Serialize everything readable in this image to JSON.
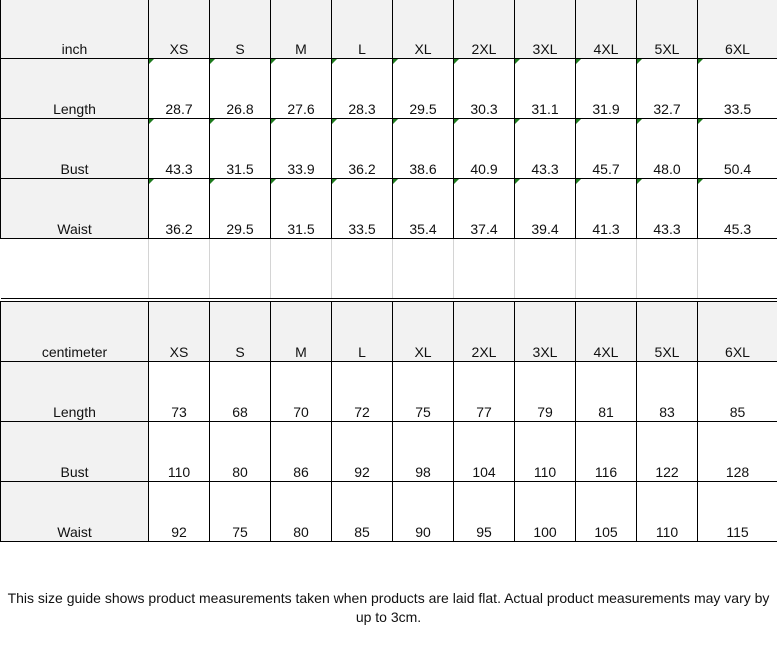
{
  "tables": [
    {
      "unit": "inch",
      "sizes": [
        "XS",
        "S",
        "M",
        "L",
        "XL",
        "2XL",
        "3XL",
        "4XL",
        "5XL",
        "6XL"
      ],
      "text_number_flag": true,
      "rows": [
        {
          "label": "Length",
          "values": [
            "28.7",
            "26.8",
            "27.6",
            "28.3",
            "29.5",
            "30.3",
            "31.1",
            "31.9",
            "32.7",
            "33.5"
          ]
        },
        {
          "label": "Bust",
          "values": [
            "43.3",
            "31.5",
            "33.9",
            "36.2",
            "38.6",
            "40.9",
            "43.3",
            "45.7",
            "48.0",
            "50.4"
          ]
        },
        {
          "label": "Waist",
          "values": [
            "36.2",
            "29.5",
            "31.5",
            "33.5",
            "35.4",
            "37.4",
            "39.4",
            "41.3",
            "43.3",
            "45.3"
          ]
        }
      ]
    },
    {
      "unit": "centimeter",
      "sizes": [
        "XS",
        "S",
        "M",
        "L",
        "XL",
        "2XL",
        "3XL",
        "4XL",
        "5XL",
        "6XL"
      ],
      "text_number_flag": false,
      "rows": [
        {
          "label": "Length",
          "values": [
            "73",
            "68",
            "70",
            "72",
            "75",
            "77",
            "79",
            "81",
            "83",
            "85"
          ]
        },
        {
          "label": "Bust",
          "values": [
            "110",
            "80",
            "86",
            "92",
            "98",
            "104",
            "110",
            "116",
            "122",
            "128"
          ]
        },
        {
          "label": "Waist",
          "values": [
            "92",
            "75",
            "80",
            "85",
            "90",
            "95",
            "100",
            "105",
            "110",
            "115"
          ]
        }
      ]
    }
  ],
  "colors": {
    "header_bg": "#f2f2f2",
    "flag": "#1e7b1e"
  },
  "note": "This size guide shows product measurements taken when products are laid flat. Actual product measurements may vary by up to 3cm."
}
